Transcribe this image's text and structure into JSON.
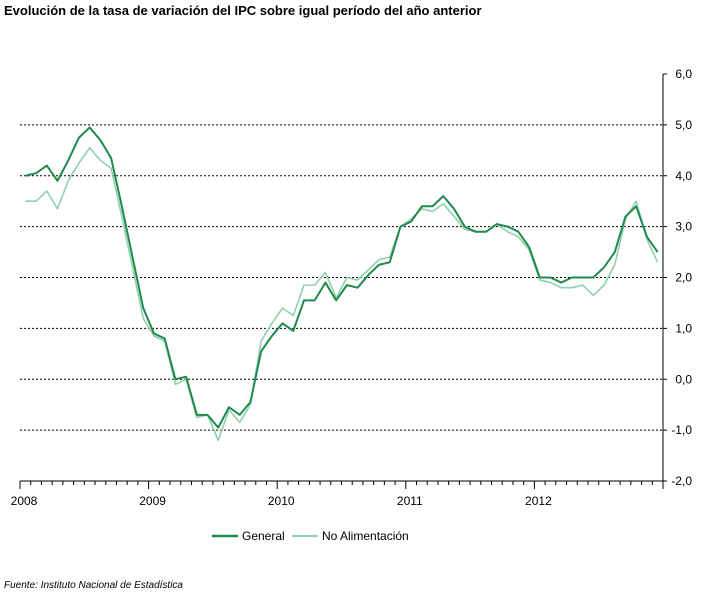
{
  "chart_data": {
    "type": "line",
    "title": "Evolución de la tasa de variación del IPC sobre igual período del año anterior",
    "source": "Fuente: Instituto Nacional de Estadística",
    "xlabel": "",
    "ylabel": "",
    "ylim": [
      -2.0,
      6.0
    ],
    "yticks": [
      6.0,
      5.0,
      4.0,
      3.0,
      2.0,
      1.0,
      0.0,
      -1.0,
      -2.0
    ],
    "ytick_labels": [
      "6,0",
      "5,0",
      "4,0",
      "3,0",
      "2,0",
      "1,0",
      "0,0",
      "-1,0",
      "-2,0"
    ],
    "x_year_labels": [
      "2008",
      "2009",
      "2010",
      "2011",
      "2012"
    ],
    "x_start": "2008-01",
    "months": 60,
    "grid": "horizontal dashed",
    "legend_position": "bottom-center",
    "series": [
      {
        "name": "General",
        "color": "#1f8a4c",
        "values": [
          4.0,
          4.05,
          4.2,
          3.9,
          4.3,
          4.75,
          4.95,
          4.7,
          4.35,
          3.4,
          2.4,
          1.4,
          0.9,
          0.8,
          0.0,
          0.05,
          -0.7,
          -0.7,
          -0.95,
          -0.55,
          -0.7,
          -0.45,
          0.55,
          0.85,
          1.1,
          0.95,
          1.55,
          1.55,
          1.9,
          1.55,
          1.85,
          1.8,
          2.05,
          2.25,
          2.3,
          3.0,
          3.1,
          3.4,
          3.4,
          3.6,
          3.35,
          3.0,
          2.9,
          2.9,
          3.05,
          3.0,
          2.9,
          2.6,
          2.0,
          2.0,
          1.9,
          2.0,
          2.0,
          2.0,
          2.2,
          2.5,
          3.2,
          3.4,
          2.8,
          2.5
        ]
      },
      {
        "name": "No Alimentación",
        "color": "#92cfae",
        "values": [
          3.5,
          3.5,
          3.7,
          3.35,
          3.9,
          4.25,
          4.55,
          4.3,
          4.15,
          3.2,
          2.2,
          1.2,
          0.85,
          0.75,
          -0.1,
          0.0,
          -0.75,
          -0.7,
          -1.2,
          -0.6,
          -0.85,
          -0.5,
          0.75,
          1.1,
          1.4,
          1.25,
          1.85,
          1.85,
          2.1,
          1.6,
          2.0,
          1.95,
          2.15,
          2.35,
          2.4,
          3.0,
          3.15,
          3.35,
          3.3,
          3.45,
          3.2,
          2.95,
          2.9,
          2.9,
          3.05,
          2.9,
          2.8,
          2.55,
          1.95,
          1.9,
          1.8,
          1.8,
          1.85,
          1.65,
          1.85,
          2.25,
          3.15,
          3.5,
          2.75,
          2.3
        ]
      }
    ]
  }
}
